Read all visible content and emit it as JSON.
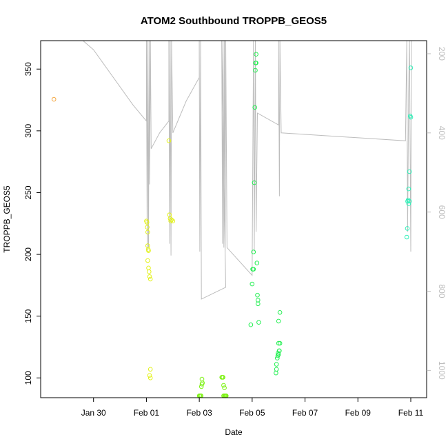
{
  "chart_data": {
    "type": "scatter",
    "title": "ATOM2 Southbound TROPPB_GEOS5",
    "xlabel": "Date",
    "ylabel": "TROPPB_GEOS5",
    "x_unit": "days in Jan/Feb (Jan 30 = 30, Feb 01 = 32)",
    "xlim": [
      28.0,
      42.6
    ],
    "ylim": [
      84,
      373
    ],
    "x_ticks": [
      {
        "value": 30,
        "label": "Jan 30"
      },
      {
        "value": 32,
        "label": "Feb 01"
      },
      {
        "value": 34,
        "label": "Feb 03"
      },
      {
        "value": 36,
        "label": "Feb 05"
      },
      {
        "value": 38,
        "label": "Feb 07"
      },
      {
        "value": 40,
        "label": "Feb 09"
      },
      {
        "value": 42,
        "label": "Feb 11"
      }
    ],
    "y_ticks": [
      100,
      150,
      200,
      250,
      300,
      350
    ],
    "secondary_axis": {
      "side": "right",
      "reversed": true,
      "range": [
        167,
        1069
      ],
      "ticks": [
        200,
        400,
        600,
        800,
        1000
      ],
      "line_color": "#bdbdbd"
    },
    "legend": "none",
    "grid": false,
    "point_color_note": "color varies along track from orange (early) through yellow and green to cyan (late)",
    "series": [
      {
        "color": "#f4a742",
        "points": [
          [
            28.5,
            325.5
          ]
        ]
      },
      {
        "color": "#e3f21c",
        "points": [
          [
            32.0,
            227
          ],
          [
            32.02,
            226
          ],
          [
            32.03,
            222
          ],
          [
            32.05,
            218
          ],
          [
            32.05,
            207
          ],
          [
            32.07,
            204
          ],
          [
            32.08,
            203
          ],
          [
            32.05,
            195
          ],
          [
            32.08,
            189
          ],
          [
            32.1,
            186
          ],
          [
            32.12,
            182
          ],
          [
            32.15,
            180
          ],
          [
            32.15,
            107
          ],
          [
            32.12,
            102
          ],
          [
            32.15,
            100
          ],
          [
            32.85,
            292
          ],
          [
            32.87,
            232
          ],
          [
            32.9,
            229
          ],
          [
            32.92,
            227
          ],
          [
            33.0,
            227
          ],
          [
            32.95,
            228
          ]
        ]
      },
      {
        "color": "#7cf212",
        "points": [
          [
            34.0,
            85.5
          ],
          [
            34.02,
            85.5
          ],
          [
            34.05,
            85.5
          ],
          [
            34.07,
            85.5
          ],
          [
            34.08,
            93
          ],
          [
            34.1,
            95
          ],
          [
            34.12,
            96
          ],
          [
            34.1,
            99
          ],
          [
            34.85,
            100.5
          ],
          [
            34.88,
            100.5
          ],
          [
            34.9,
            100.5
          ],
          [
            34.92,
            94
          ],
          [
            34.95,
            92
          ],
          [
            34.92,
            85.5
          ],
          [
            34.95,
            85.5
          ],
          [
            34.98,
            85.5
          ],
          [
            35.0,
            85.5
          ],
          [
            35.02,
            85.5
          ]
        ]
      },
      {
        "color": "#23ef52",
        "points": [
          [
            35.95,
            143
          ],
          [
            36.0,
            176
          ],
          [
            36.02,
            188
          ],
          [
            36.05,
            188
          ],
          [
            36.05,
            202
          ],
          [
            36.08,
            258
          ],
          [
            36.1,
            319
          ],
          [
            36.12,
            349
          ],
          [
            36.13,
            355
          ],
          [
            36.15,
            355
          ],
          [
            36.15,
            362
          ],
          [
            36.18,
            193
          ],
          [
            36.2,
            167
          ],
          [
            36.22,
            163
          ],
          [
            36.22,
            160
          ],
          [
            36.25,
            145
          ],
          [
            36.9,
            104
          ],
          [
            36.92,
            107
          ],
          [
            36.92,
            111
          ],
          [
            36.95,
            116
          ],
          [
            36.97,
            118
          ],
          [
            36.98,
            120
          ],
          [
            37.0,
            119
          ],
          [
            37.02,
            122
          ],
          [
            37.03,
            122
          ],
          [
            37.0,
            128
          ],
          [
            37.05,
            128
          ],
          [
            37.0,
            146
          ],
          [
            37.05,
            153
          ]
        ]
      },
      {
        "color": "#2ff0b8",
        "points": [
          [
            41.85,
            214
          ],
          [
            41.87,
            221
          ],
          [
            41.88,
            243
          ],
          [
            41.9,
            244
          ],
          [
            41.92,
            241
          ],
          [
            41.95,
            243
          ],
          [
            41.92,
            253
          ],
          [
            41.95,
            267
          ],
          [
            41.98,
            312
          ],
          [
            42.0,
            311
          ],
          [
            42.0,
            351
          ]
        ]
      }
    ],
    "secondary_line": {
      "color": "#bdbdbd",
      "points": [
        [
          29.6,
          167
        ],
        [
          30.0,
          190
        ],
        [
          31.5,
          330
        ],
        [
          32.0,
          370
        ],
        [
          32.0,
          167
        ],
        [
          32.03,
          700
        ],
        [
          32.05,
          167
        ],
        [
          32.08,
          690
        ],
        [
          32.1,
          167
        ],
        [
          32.12,
          530
        ],
        [
          32.15,
          167
        ],
        [
          32.18,
          440
        ],
        [
          32.5,
          400
        ],
        [
          32.85,
          370
        ],
        [
          32.85,
          167
        ],
        [
          32.88,
          680
        ],
        [
          32.9,
          167
        ],
        [
          32.93,
          710
        ],
        [
          32.95,
          167
        ],
        [
          33.0,
          400
        ],
        [
          33.5,
          320
        ],
        [
          34.0,
          260
        ],
        [
          34.0,
          167
        ],
        [
          34.02,
          700
        ],
        [
          34.05,
          167
        ],
        [
          34.08,
          820
        ],
        [
          35.0,
          790
        ],
        [
          34.85,
          167
        ],
        [
          34.88,
          680
        ],
        [
          34.9,
          167
        ],
        [
          34.93,
          690
        ],
        [
          34.95,
          167
        ],
        [
          34.98,
          700
        ],
        [
          35.0,
          167
        ],
        [
          35.05,
          690
        ],
        [
          36.0,
          760
        ],
        [
          36.05,
          167
        ],
        [
          36.08,
          700
        ],
        [
          36.12,
          167
        ],
        [
          36.15,
          650
        ],
        [
          36.2,
          350
        ],
        [
          37.0,
          380
        ],
        [
          37.0,
          167
        ],
        [
          37.03,
          560
        ],
        [
          37.05,
          167
        ],
        [
          37.1,
          400
        ],
        [
          41.8,
          420
        ],
        [
          41.85,
          167
        ],
        [
          41.88,
          650
        ],
        [
          41.92,
          300
        ],
        [
          41.95,
          167
        ],
        [
          42.0,
          700
        ],
        [
          42.02,
          167
        ]
      ]
    }
  }
}
